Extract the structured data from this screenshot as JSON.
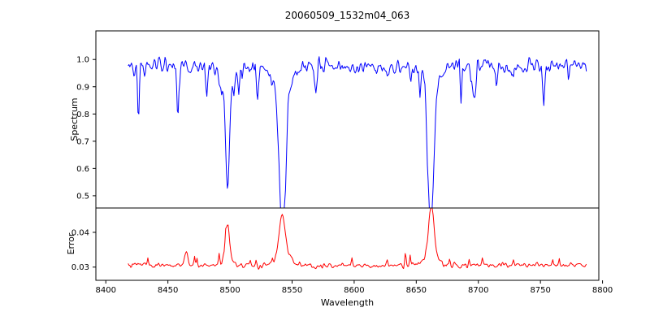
{
  "chart_data": {
    "type": "line",
    "title": "20060509_1532m04_063",
    "xlabel": "Wavelength",
    "xlim": [
      8392,
      8797
    ],
    "x_ticks": [
      8400,
      8450,
      8500,
      8550,
      8600,
      8650,
      8700,
      8750,
      8800
    ],
    "x_tick_labels": [
      "8400",
      "8450",
      "8500",
      "8550",
      "8600",
      "8650",
      "8700",
      "8750",
      "8800"
    ],
    "x_data_range": [
      8418,
      8787
    ],
    "seed": 20060509,
    "grid": false,
    "legend": "none",
    "panels": [
      {
        "name": "spectrum",
        "ylabel": "Spectrum",
        "color": "#0000ff",
        "ylim": [
          0.455,
          1.105
        ],
        "y_ticks": [
          0.5,
          0.6,
          0.7,
          0.8,
          0.9,
          1.0
        ],
        "y_tick_labels": [
          "0.5",
          "0.6",
          "0.7",
          "0.8",
          "0.9",
          "1.0"
        ],
        "continuum": 0.975,
        "noise_sigma": 0.021,
        "dip_probability": 0.035,
        "dip_depth_range": [
          0.03,
          0.13
        ],
        "absorption_lines": [
          {
            "center": 8498.0,
            "depth": 0.4,
            "sigma": 1.6,
            "min_value": 0.59
          },
          {
            "center": 8542.1,
            "depth": 0.5,
            "sigma": 2.6,
            "min_value": 0.49
          },
          {
            "center": 8662.1,
            "depth": 0.48,
            "sigma": 2.2,
            "min_value": 0.5
          }
        ]
      },
      {
        "name": "error",
        "ylabel": "Error",
        "color": "#ff0000",
        "ylim": [
          0.0262,
          0.047
        ],
        "y_ticks": [
          0.03,
          0.04
        ],
        "y_tick_labels": [
          "0.03",
          "0.04"
        ],
        "baseline": 0.0305,
        "noise_sigma": 0.0006,
        "spike_probability": 0.03,
        "spike_height_range": [
          0.0008,
          0.0033
        ],
        "peaks": [
          {
            "center": 8465.0,
            "height": 0.0035,
            "sigma": 1.2,
            "max_value": 0.034
          },
          {
            "center": 8498.0,
            "height": 0.0105,
            "sigma": 1.6,
            "max_value": 0.041
          },
          {
            "center": 8542.1,
            "height": 0.013,
            "sigma": 2.6,
            "max_value": 0.0435
          },
          {
            "center": 8662.1,
            "height": 0.0155,
            "sigma": 2.2,
            "max_value": 0.046
          }
        ]
      }
    ]
  }
}
